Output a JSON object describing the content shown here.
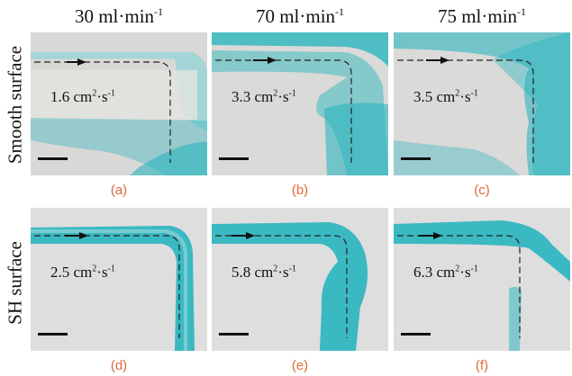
{
  "columns": [
    {
      "base": "30 ml·min",
      "exp": "-1"
    },
    {
      "base": "70 ml·min",
      "exp": "-1"
    },
    {
      "base": "75 ml·min",
      "exp": "-1"
    }
  ],
  "rows": [
    {
      "label": "Smooth surface"
    },
    {
      "label": "SH surface"
    }
  ],
  "panels": [
    {
      "tag": "(a)",
      "v_pre": "1.6 cm",
      "v_mid": "2",
      "v_dot": "·s",
      "v_post": "-1"
    },
    {
      "tag": "(b)",
      "v_pre": "3.3 cm",
      "v_mid": "2",
      "v_dot": "·s",
      "v_post": "-1"
    },
    {
      "tag": "(c)",
      "v_pre": "3.5 cm",
      "v_mid": "2",
      "v_dot": "·s",
      "v_post": "-1"
    },
    {
      "tag": "(d)",
      "v_pre": "2.5 cm",
      "v_mid": "2",
      "v_dot": "·s",
      "v_post": "-1"
    },
    {
      "tag": "(e)",
      "v_pre": "5.8 cm",
      "v_mid": "2",
      "v_dot": "·s",
      "v_post": "-1"
    },
    {
      "tag": "(f)",
      "v_pre": "6.3 cm",
      "v_mid": "2",
      "v_dot": "·s",
      "v_post": "-1"
    }
  ],
  "colors": {
    "dye": "#1fb3bd",
    "label": "#e0693a",
    "substrate": "#dcdcdc"
  }
}
